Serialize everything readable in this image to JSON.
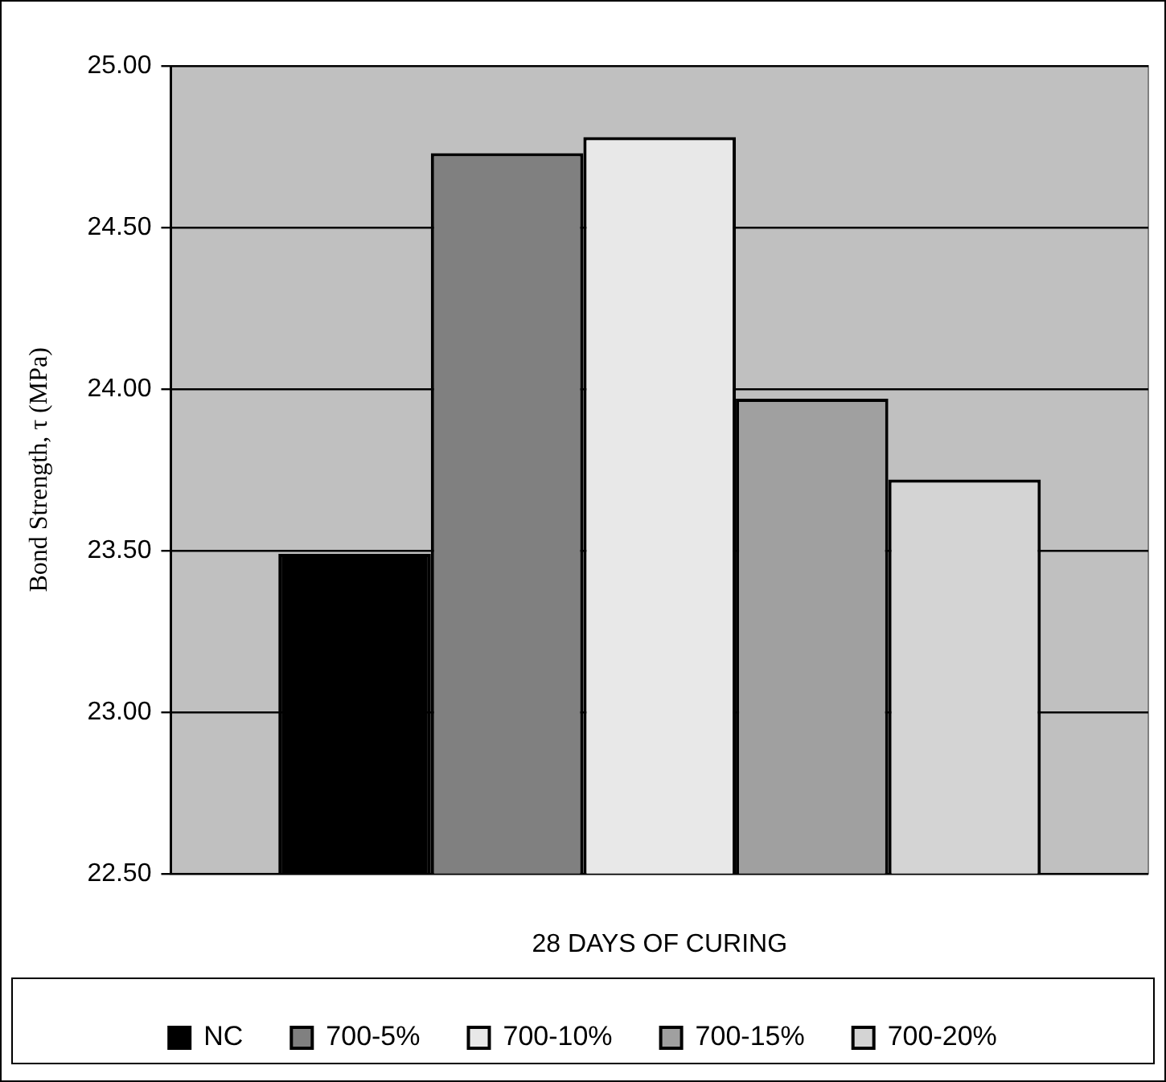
{
  "chart_data": {
    "type": "bar",
    "categories": [
      null
    ],
    "xlabel": "28 DAYS OF CURING",
    "ylabel": "Bond Strength, τ (MPa)",
    "series": [
      {
        "name": "NC",
        "color": "#000000",
        "values": [
          23.49
        ]
      },
      {
        "name": "700-5%",
        "color": "#808080",
        "values": [
          24.73
        ]
      },
      {
        "name": "700-10%",
        "color": "#e8e8e8",
        "values": [
          24.78
        ]
      },
      {
        "name": "700-15%",
        "color": "#a0a0a0",
        "values": [
          23.97
        ]
      },
      {
        "name": "700-20%",
        "color": "#d4d4d4",
        "values": [
          23.72
        ]
      }
    ],
    "ylim": [
      22.5,
      25
    ],
    "yticks": [
      {
        "value": 22.5,
        "label": "22.50"
      },
      {
        "value": 23,
        "label": "23.00"
      },
      {
        "value": 23.5,
        "label": "23.50"
      },
      {
        "value": 24,
        "label": "24.00"
      },
      {
        "value": 24.5,
        "label": "24.50"
      },
      {
        "value": 25,
        "label": "25.00"
      }
    ],
    "grid": "y",
    "legend": "bottom"
  }
}
